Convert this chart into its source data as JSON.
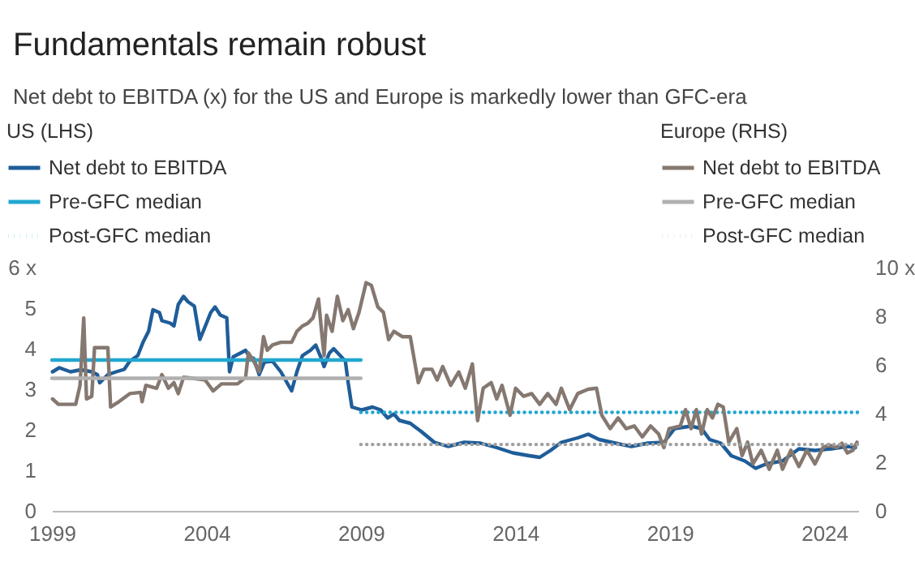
{
  "chart_data": {
    "type": "line",
    "title": "Fundamentals remain robust",
    "subtitle": "Net debt to EBITDA (x) for the US and Europe is markedly lower than GFC-era",
    "annotations": [
      "US (LHS)",
      "Europe (RHS)"
    ],
    "legend": "top",
    "xlim": [
      1999,
      2025.1
    ],
    "xticks": [
      1999,
      2004,
      2009,
      2014,
      2019,
      2024
    ],
    "ylim": [
      0,
      6
    ],
    "yticks": [
      0,
      1,
      2,
      3,
      4,
      5,
      {
        "value": 6,
        "label": "6 x"
      }
    ],
    "y2lim": [
      0,
      10
    ],
    "y2ticks": [
      0,
      2,
      4,
      6,
      8,
      {
        "value": 10,
        "label": "10 x"
      }
    ],
    "series": [
      {
        "name": "Net debt to EBITDA",
        "color": "#1f5d99",
        "axis": "y",
        "line_style": "solid",
        "x": [
          1999.02,
          1999.24,
          1999.6,
          1999.94,
          2000.29,
          2000.47,
          2000.55,
          2000.81,
          2001.08,
          2001.34,
          2001.52,
          2001.78,
          2001.95,
          2002.13,
          2002.27,
          2002.48,
          2002.56,
          2002.83,
          2002.95,
          2003.09,
          2003.26,
          2003.4,
          2003.61,
          2003.79,
          2003.93,
          2004.14,
          2004.28,
          2004.45,
          2004.66,
          2004.75,
          2004.87,
          2005.1,
          2005.27,
          2005.39,
          2005.53,
          2005.71,
          2005.88,
          2006.14,
          2006.41,
          2006.76,
          2006.93,
          2007.11,
          2007.37,
          2007.54,
          2007.72,
          2007.81,
          2007.98,
          2008.12,
          2008.33,
          2008.5,
          2008.59,
          2008.71,
          2009.03,
          2009.38,
          2009.64,
          2009.87,
          2010.07,
          2010.25,
          2010.6,
          2010.95,
          2011.38,
          2011.82,
          2012.35,
          2012.87,
          2013.4,
          2013.92,
          2014.45,
          2014.79,
          2015.14,
          2015.49,
          2016.02,
          2016.36,
          2016.71,
          2017.24,
          2017.76,
          2018.29,
          2018.81,
          2019.16,
          2019.69,
          2020.03,
          2020.29,
          2020.65,
          2020.99,
          2021.43,
          2021.78,
          2022.13,
          2022.65,
          2023.18,
          2023.7,
          2024.23,
          2024.75,
          2025.01
        ],
        "values": [
          3.43,
          3.53,
          3.43,
          3.48,
          3.43,
          3.36,
          3.16,
          3.36,
          3.43,
          3.49,
          3.69,
          3.83,
          4.16,
          4.43,
          4.96,
          4.89,
          4.69,
          4.63,
          4.56,
          5.09,
          5.29,
          5.16,
          5.05,
          4.23,
          4.49,
          4.89,
          5.03,
          4.83,
          4.76,
          3.43,
          3.8,
          3.89,
          3.96,
          3.8,
          3.76,
          3.36,
          3.67,
          3.69,
          3.43,
          2.96,
          3.43,
          3.83,
          3.96,
          4.09,
          3.76,
          3.56,
          3.89,
          4.0,
          3.83,
          3.69,
          3.16,
          2.56,
          2.49,
          2.56,
          2.49,
          2.29,
          2.39,
          2.23,
          2.16,
          1.96,
          1.69,
          1.59,
          1.69,
          1.67,
          1.56,
          1.43,
          1.36,
          1.32,
          1.49,
          1.69,
          1.8,
          1.89,
          1.76,
          1.67,
          1.59,
          1.67,
          1.69,
          2.03,
          2.09,
          2.03,
          1.76,
          1.67,
          1.36,
          1.23,
          1.05,
          1.16,
          1.23,
          1.53,
          1.49,
          1.53,
          1.59,
          1.56
        ]
      },
      {
        "name": "Pre-GFC median",
        "color": "#22a7d0",
        "axis": "y",
        "line_style": "solid",
        "x": [
          1999,
          2009
        ],
        "values": [
          3.72,
          3.72
        ]
      },
      {
        "name": "Post-GFC median",
        "color": "#22a7d0",
        "axis": "y",
        "line_style": "dotted",
        "x": [
          2009,
          2025.1
        ],
        "values": [
          2.43,
          2.43
        ]
      },
      {
        "name": "Net debt to EBITDA",
        "color": "#857870",
        "axis": "y2",
        "line_style": "solid",
        "x": [
          1999.02,
          1999.21,
          1999.77,
          1999.91,
          2000.03,
          2000.12,
          2000.29,
          2000.38,
          2000.81,
          2000.9,
          2001.17,
          2001.52,
          2001.87,
          2001.92,
          2002.04,
          2002.39,
          2002.56,
          2002.77,
          2002.95,
          2003.09,
          2003.26,
          2003.61,
          2003.96,
          2004.22,
          2004.49,
          2005.01,
          2005.27,
          2005.36,
          2005.53,
          2005.71,
          2005.85,
          2005.97,
          2006.14,
          2006.41,
          2006.76,
          2006.93,
          2007.11,
          2007.28,
          2007.45,
          2007.63,
          2007.72,
          2007.81,
          2007.89,
          2008.07,
          2008.24,
          2008.42,
          2008.59,
          2008.76,
          2008.94,
          2009.17,
          2009.34,
          2009.55,
          2009.73,
          2009.9,
          2010.07,
          2010.34,
          2010.6,
          2010.86,
          2011.04,
          2011.3,
          2011.47,
          2011.65,
          2011.91,
          2012.17,
          2012.38,
          2012.61,
          2012.78,
          2012.96,
          2013.22,
          2013.4,
          2013.57,
          2013.83,
          2014.01,
          2014.27,
          2014.53,
          2014.79,
          2015.05,
          2015.32,
          2015.49,
          2015.76,
          2016.02,
          2016.36,
          2016.63,
          2016.8,
          2017.07,
          2017.33,
          2017.59,
          2017.85,
          2018.11,
          2018.38,
          2018.64,
          2018.81,
          2018.98,
          2019.34,
          2019.51,
          2019.69,
          2019.86,
          2020.03,
          2020.21,
          2020.38,
          2020.56,
          2020.73,
          2020.91,
          2021.17,
          2021.34,
          2021.52,
          2021.69,
          2021.96,
          2022.22,
          2022.48,
          2022.65,
          2022.92,
          2023.18,
          2023.44,
          2023.7,
          2023.96,
          2024.14,
          2024.4,
          2024.57,
          2024.75,
          2024.93,
          2025.06
        ],
        "values": [
          4.6,
          4.38,
          4.38,
          5.16,
          7.93,
          4.6,
          4.71,
          6.71,
          6.71,
          4.27,
          4.49,
          4.82,
          4.87,
          4.49,
          5.16,
          5.04,
          5.6,
          5.04,
          5.27,
          4.82,
          5.49,
          5.44,
          5.38,
          4.93,
          5.22,
          5.22,
          5.49,
          6.49,
          6.16,
          5.71,
          7.16,
          6.6,
          6.82,
          6.93,
          6.93,
          7.38,
          7.6,
          7.71,
          7.93,
          8.71,
          7.49,
          6.38,
          8.04,
          7.38,
          8.82,
          7.82,
          8.27,
          7.49,
          8.16,
          9.38,
          9.27,
          8.38,
          8.16,
          7.04,
          7.38,
          7.16,
          7.16,
          5.27,
          5.82,
          5.82,
          5.38,
          5.93,
          5.16,
          5.71,
          5.04,
          6.04,
          3.71,
          5.04,
          5.27,
          4.6,
          5.16,
          3.93,
          5.04,
          4.71,
          4.82,
          4.38,
          4.82,
          4.38,
          5.04,
          4.16,
          4.82,
          5.0,
          5.04,
          3.93,
          3.38,
          3.82,
          3.38,
          3.49,
          3.04,
          3.49,
          3.16,
          2.6,
          3.38,
          3.49,
          4.16,
          3.38,
          4.16,
          3.16,
          4.16,
          3.82,
          4.38,
          4.27,
          2.82,
          3.38,
          2.27,
          2.82,
          1.93,
          2.49,
          1.71,
          2.49,
          1.71,
          2.49,
          1.82,
          2.49,
          1.93,
          2.6,
          2.71,
          2.6,
          2.78,
          2.38,
          2.49,
          2.82
        ]
      },
      {
        "name": "Pre-GFC median",
        "color": "#b0b0b0",
        "axis": "y2",
        "line_style": "solid",
        "x": [
          1999,
          2009
        ],
        "values": [
          5.45,
          5.45
        ]
      },
      {
        "name": "Post-GFC median",
        "color": "#a0a0a0",
        "axis": "y2",
        "line_style": "dotted",
        "x": [
          2009,
          2025.1
        ],
        "values": [
          2.73,
          2.73
        ]
      }
    ]
  }
}
